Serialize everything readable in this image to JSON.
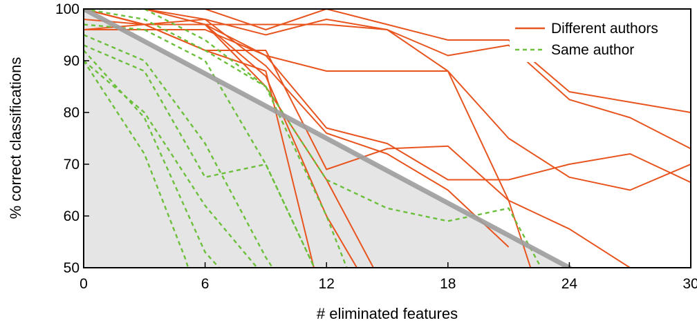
{
  "chart_data": {
    "type": "line",
    "xlabel": "# eliminated features",
    "ylabel": "% correct classifications",
    "xlim": [
      0,
      30
    ],
    "ylim": [
      50,
      100
    ],
    "x_ticks": [
      "0",
      "6",
      "12",
      "18",
      "24",
      "30"
    ],
    "y_ticks": [
      "50",
      "60",
      "70",
      "80",
      "90",
      "100"
    ],
    "legend": {
      "placement": "top-right",
      "entries": [
        {
          "label": "Different authors",
          "style": "solid",
          "color": "#e8541e"
        },
        {
          "label": "Same author",
          "style": "dashed",
          "color": "#6bbf3a"
        }
      ]
    },
    "threshold_region": {
      "color": "#e5e5e5",
      "line_color": "#9e9e9e",
      "points": [
        [
          0,
          100
        ],
        [
          24,
          50
        ]
      ]
    },
    "series": [
      {
        "group": "Different authors",
        "x": [
          0,
          3,
          6,
          9,
          12,
          15,
          18,
          21,
          24,
          27,
          30
        ],
        "y": [
          100,
          100,
          100,
          96,
          100,
          97,
          94,
          94,
          84,
          82,
          80
        ]
      },
      {
        "group": "Different authors",
        "x": [
          0,
          3,
          6,
          9,
          12,
          15,
          18,
          21,
          24,
          27,
          30
        ],
        "y": [
          96,
          97,
          97,
          97,
          97,
          96,
          91,
          93,
          82.5,
          79,
          73
        ]
      },
      {
        "group": "Different authors",
        "x": [
          0,
          3,
          6,
          9,
          12,
          15,
          18,
          21,
          24,
          27,
          30
        ],
        "y": [
          100,
          97,
          98,
          95,
          98,
          96,
          88,
          75,
          67.5,
          65,
          70
        ]
      },
      {
        "group": "Different authors",
        "x": [
          0,
          3,
          6,
          9,
          12,
          15,
          18,
          21,
          24,
          27,
          30
        ],
        "y": [
          96,
          96,
          96,
          91,
          88,
          88,
          88,
          63,
          57.5,
          50,
          40
        ]
      },
      {
        "group": "Different authors",
        "x": [
          0,
          3,
          6,
          9,
          12,
          15,
          18,
          21,
          24,
          27,
          30
        ],
        "y": [
          100,
          100,
          97,
          91,
          77,
          74,
          67,
          67,
          70,
          72,
          66.5
        ]
      },
      {
        "group": "Different authors",
        "x": [
          0,
          3,
          6,
          9,
          12,
          15,
          18,
          21
        ],
        "y": [
          100,
          100,
          98,
          89,
          76,
          72,
          65,
          54
        ]
      },
      {
        "group": "Different authors",
        "x": [
          0,
          3,
          6,
          9,
          12,
          15,
          18,
          21,
          22.5
        ],
        "y": [
          98,
          97,
          92,
          92,
          69,
          73,
          73.5,
          63,
          45
        ]
      },
      {
        "group": "Different authors",
        "x": [
          0,
          3,
          6,
          9,
          12,
          15
        ],
        "y": [
          100,
          97,
          97,
          85,
          67,
          45
        ]
      },
      {
        "group": "Different authors",
        "x": [
          0,
          3,
          6,
          9,
          12,
          15
        ],
        "y": [
          100,
          97,
          97,
          87,
          60,
          40
        ]
      },
      {
        "group": "Different authors",
        "x": [
          0,
          3,
          6,
          9,
          12
        ],
        "y": [
          100,
          97,
          92,
          88,
          40
        ]
      },
      {
        "group": "Same author",
        "x": [
          0,
          3,
          6,
          9,
          12,
          15,
          18,
          21,
          24
        ],
        "y": [
          100,
          98,
          92,
          85,
          67,
          61.5,
          59,
          61.5,
          40
        ]
      },
      {
        "group": "Same author",
        "x": [
          0,
          3,
          6,
          9,
          12,
          14
        ],
        "y": [
          100,
          100,
          94,
          85,
          60,
          40
        ]
      },
      {
        "group": "Same author",
        "x": [
          0,
          3,
          6,
          9,
          12
        ],
        "y": [
          97,
          96,
          90,
          70,
          45
        ]
      },
      {
        "group": "Same author",
        "x": [
          0,
          3,
          6,
          9,
          11
        ],
        "y": [
          95,
          90,
          74,
          52,
          40
        ]
      },
      {
        "group": "Same author",
        "x": [
          0,
          3,
          6,
          9,
          12
        ],
        "y": [
          93,
          88,
          67.5,
          70,
          45
        ]
      },
      {
        "group": "Same author",
        "x": [
          0,
          3,
          6,
          9,
          11
        ],
        "y": [
          90,
          80,
          62,
          48,
          40
        ]
      },
      {
        "group": "Same author",
        "x": [
          0,
          3,
          6,
          9
        ],
        "y": [
          92,
          79,
          53,
          40
        ]
      },
      {
        "group": "Same author",
        "x": [
          0,
          3,
          5,
          6
        ],
        "y": [
          90,
          72,
          52,
          40
        ]
      }
    ]
  }
}
